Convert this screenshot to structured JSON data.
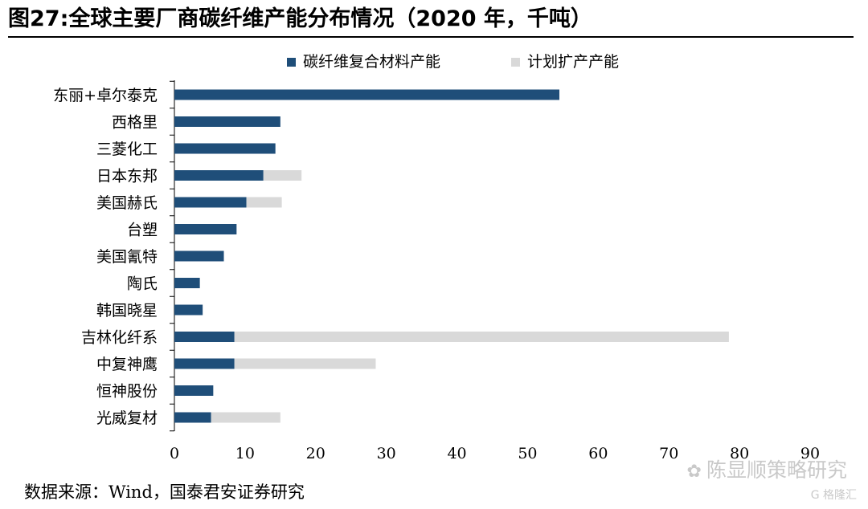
{
  "title": "图27:全球主要厂商碳纤维产能分布情况（2020 年，千吨）",
  "source": "数据来源：Wind，国泰君安证券研究",
  "watermark": {
    "text": "陈显顺策略研究",
    "icon": "wechat-icon",
    "logo_text": "G 格隆汇"
  },
  "colors": {
    "existing": "#1f4e79",
    "planned": "#d9d9d9",
    "axis": "#000000"
  },
  "chart_data": {
    "type": "bar",
    "orientation": "horizontal",
    "stacked": true,
    "categories": [
      "东丽+卓尔泰克",
      "西格里",
      "三菱化工",
      "日本东邦",
      "美国赫氏",
      "台塑",
      "美国氰特",
      "陶氏",
      "韩国晓星",
      "吉林化纤系",
      "中复神鹰",
      "恒神股份",
      "光威复材"
    ],
    "series": [
      {
        "name": "碳纤维复合材料产能",
        "values": [
          54.5,
          15,
          14.3,
          12.6,
          10.2,
          8.8,
          7,
          3.6,
          4,
          8.5,
          8.5,
          5.5,
          5.2
        ]
      },
      {
        "name": "计划扩产产能",
        "values": [
          0,
          0,
          0,
          5.4,
          5,
          0,
          0,
          0,
          0,
          70,
          20,
          0,
          9.8
        ]
      }
    ],
    "xlim": [
      0,
      90
    ],
    "xticks": [
      0,
      10,
      20,
      30,
      40,
      50,
      60,
      70,
      80,
      90
    ],
    "legend_position": "top-center",
    "grid": false
  }
}
